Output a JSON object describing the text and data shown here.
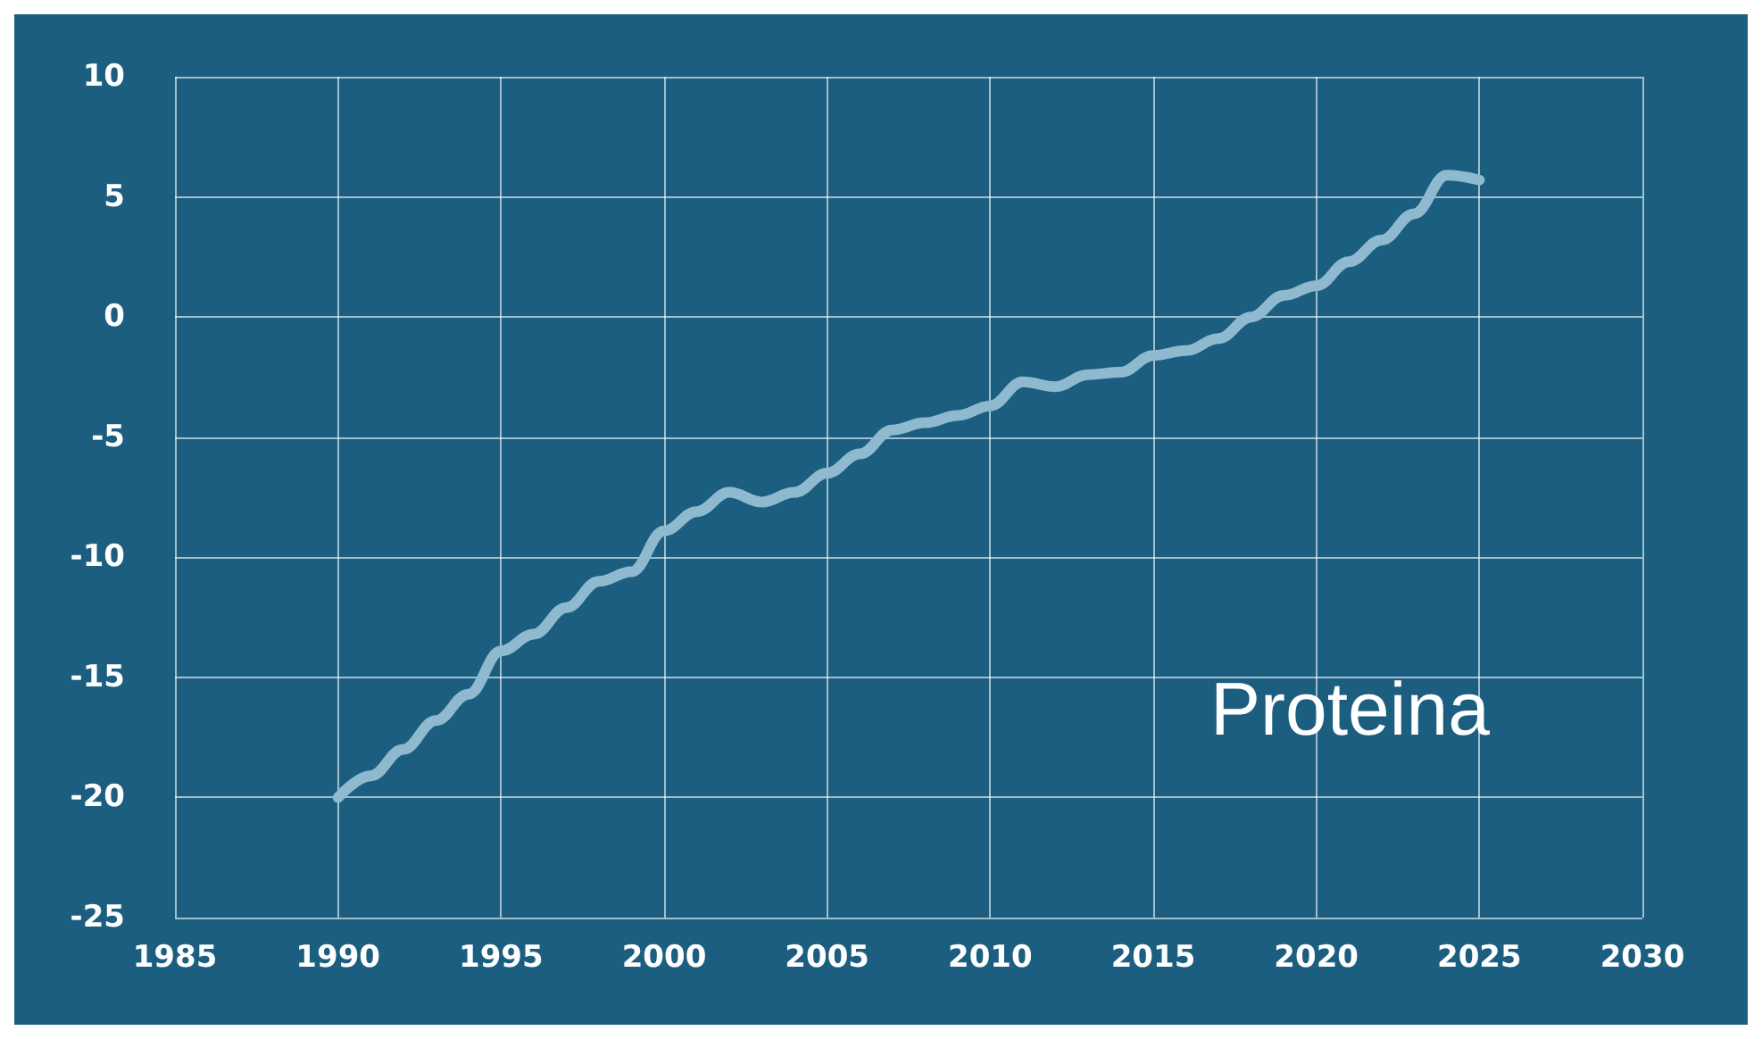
{
  "chart_data": {
    "type": "line",
    "x": [
      1990,
      1991,
      1992,
      1993,
      1994,
      1995,
      1996,
      1997,
      1998,
      1999,
      2000,
      2001,
      2002,
      2003,
      2004,
      2005,
      2006,
      2007,
      2008,
      2009,
      2010,
      2011,
      2012,
      2013,
      2014,
      2015,
      2016,
      2017,
      2018,
      2019,
      2020,
      2021,
      2022,
      2023,
      2024,
      2025
    ],
    "series": [
      {
        "color": "#8fb9cf",
        "values": [
          -20,
          -19.1,
          -18,
          -16.8,
          -15.7,
          -13.9,
          -13.2,
          -12.1,
          -11,
          -10.6,
          -8.9,
          -8.1,
          -7.3,
          -7.7,
          -7.3,
          -6.5,
          -5.7,
          -4.7,
          -4.4,
          -4.1,
          -3.7,
          -2.7,
          -2.9,
          -2.4,
          -2.3,
          -1.6,
          -1.4,
          -0.9,
          0,
          0.9,
          1.3,
          2.3,
          3.2,
          4.3,
          5.9,
          5.7
        ]
      }
    ],
    "xlim": [
      1985,
      2030
    ],
    "xticks": [
      1985,
      1990,
      1995,
      2000,
      2005,
      2010,
      2015,
      2020,
      2025,
      2030
    ],
    "ylim": [
      -25,
      10
    ],
    "yticks": [
      -25,
      -20,
      -15,
      -10,
      -5,
      0,
      5,
      10
    ],
    "grid": true,
    "marker": "none",
    "line_style": "solid",
    "annotations": [
      "Proteina"
    ]
  }
}
